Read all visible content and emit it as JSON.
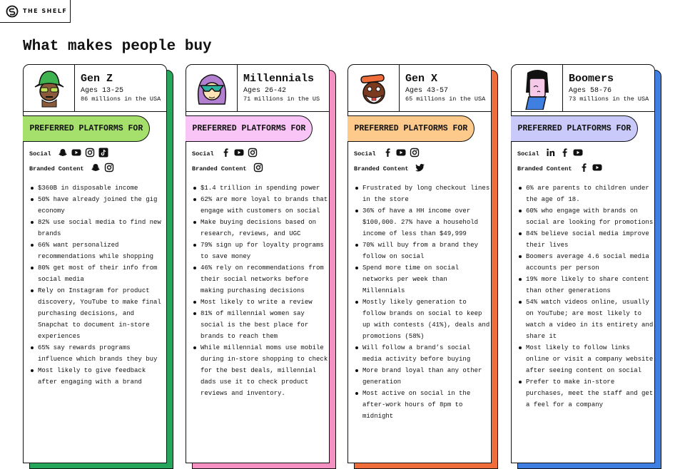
{
  "header": {
    "logo": "THE SHELF",
    "title": "What makes people buy"
  },
  "cards": [
    {
      "name": "Gen Z",
      "ages": "Ages 13-25",
      "population": "86 millions in the USA",
      "platforms_label": "PREFERRED PLATFORMS FOR",
      "social_label": "Social",
      "branded_label": "Branded Content",
      "bullets": [
        "$360B in  disposable income",
        "50% have already joined the gig economy",
        "82% use social media to find new brands",
        "66% want personalized recommendations while shopping",
        "80% get most of their info from social media",
        "Rely on Instagram for product discovery, YouTube to make final purchasing decisions, and Snapchat to document in-store experiences",
        "65% say rewards programs influence which brands they buy",
        "Most likely to give feedback after engaging with a brand"
      ]
    },
    {
      "name": "Millennials",
      "ages": "Ages 26-42",
      "population": "71 millions in the US",
      "platforms_label": "PREFERRED PLATFORMS FOR",
      "social_label": "Social",
      "branded_label": "Branded Content",
      "bullets": [
        "$1.4 trillion in spending power",
        "62% are more loyal to brands that engage with customers on social",
        "Make buying decisions based on research, reviews, and UGC",
        "79% sign up for loyalty programs to save money",
        "46% rely on recommendations from their social networks before making purchasing decisions",
        "Most likely to write a review",
        "81% of millennial women say social is the best place for brands to reach them",
        "While millennial moms use mobile during in-store shopping to check for the best deals, millennial dads use it to check product reviews and inventory."
      ]
    },
    {
      "name": "Gen X",
      "ages": "Ages 43-57",
      "population": "65 millions in the USA",
      "platforms_label": "PREFERRED PLATFORMS FOR",
      "social_label": "Social",
      "branded_label": "Branded Content",
      "bullets": [
        "Frustrated by long checkout lines in the store",
        "36% of have a HH income over $100,000. 27% have a household income of less than $49,999",
        "70% will buy from a brand they follow on social",
        "Spend more time on social networks per week than Millennials",
        "Mostly likely generation to follow brands on social to keep up with contests (41%), deals and promotions (58%)",
        "Will follow a brand’s social media activity before buying",
        "More brand loyal than any other generation",
        "Most active on social in the after-work hours of 8pm to midnight"
      ]
    },
    {
      "name": "Boomers",
      "ages": "Ages 58-76",
      "population": "73 millions in the USA",
      "platforms_label": "PREFERRED PLATFORMS FOR",
      "social_label": "Social",
      "branded_label": "Branded Content",
      "bullets": [
        "6% are parents to children under the age of 18.",
        "60% who engage with brands on social are looking for promotions",
        "84% believe social media improve their lives",
        "Boomers average 4.6 social media accounts per person",
        "19% more likely to share content than other generations",
        "54% watch videos online, usually on YouTube; are most likely to watch a video in its entirety and share it",
        "Most likely to follow links online or visit a company website after seeing content on social",
        "Prefer to make in-store purchases, meet the staff and get a feel for a company"
      ]
    }
  ]
}
